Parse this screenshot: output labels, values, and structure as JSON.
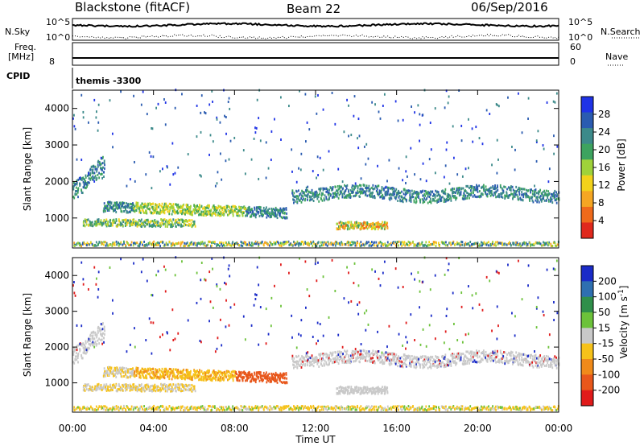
{
  "header": {
    "station": "Blackstone (fitACF)",
    "beam": "Beam 22",
    "date": "06/Sep/2016"
  },
  "panels": {
    "nsky": {
      "label": "N.Sky",
      "tick_top": "10^5",
      "tick_bottom": "10^0"
    },
    "freq": {
      "label_line1": "Freq.",
      "label_line2": "[MHz]",
      "tick": "8"
    },
    "cpid": {
      "label": "CPID",
      "value": "themis -3300"
    },
    "right_nsky": {
      "tick_top": "10^5",
      "tick_bottom": "10^0",
      "legend": "N.Search"
    },
    "right_nave": {
      "tick_top": "60",
      "tick_bottom": "0",
      "legend": "Nave"
    }
  },
  "chart_data": [
    {
      "type": "heatmap",
      "name": "power",
      "ylabel": "Slant Range [km]",
      "xlabel": "",
      "ylim": [
        180,
        4500
      ],
      "xlim_hours": [
        0,
        24
      ],
      "yticks": [
        1000,
        2000,
        3000,
        4000
      ],
      "colorbar": {
        "label": "Power [dB]",
        "range": [
          0,
          32
        ],
        "ticks": [
          "4",
          "8",
          "12",
          "16",
          "20",
          "24",
          "28"
        ],
        "colors": [
          "#1f33e6",
          "#2a5bb0",
          "#3c8a8a",
          "#3da35f",
          "#9fd23a",
          "#f2d21b",
          "#f5a623",
          "#ef6a1b",
          "#e0281c"
        ]
      }
    },
    {
      "type": "heatmap",
      "name": "velocity",
      "ylabel": "Slant Range [km]",
      "xlabel": "Time UT",
      "ylim": [
        180,
        4500
      ],
      "xlim_hours": [
        0,
        24
      ],
      "yticks": [
        1000,
        2000,
        3000,
        4000
      ],
      "xticks": [
        "00:00",
        "04:00",
        "08:00",
        "12:00",
        "16:00",
        "20:00",
        "00:00"
      ],
      "colorbar": {
        "label": "Velocity [m s^-1]",
        "ticks": [
          "200",
          "100",
          "50",
          "15",
          "-15",
          "-50",
          "-100",
          "-200"
        ],
        "colors": [
          "#1a2bc8",
          "#2e6fb0",
          "#2f8f4a",
          "#6cc23a",
          "#c9c9c9",
          "#f6c21a",
          "#f08a1a",
          "#e8571b",
          "#e01a1a"
        ]
      }
    }
  ]
}
